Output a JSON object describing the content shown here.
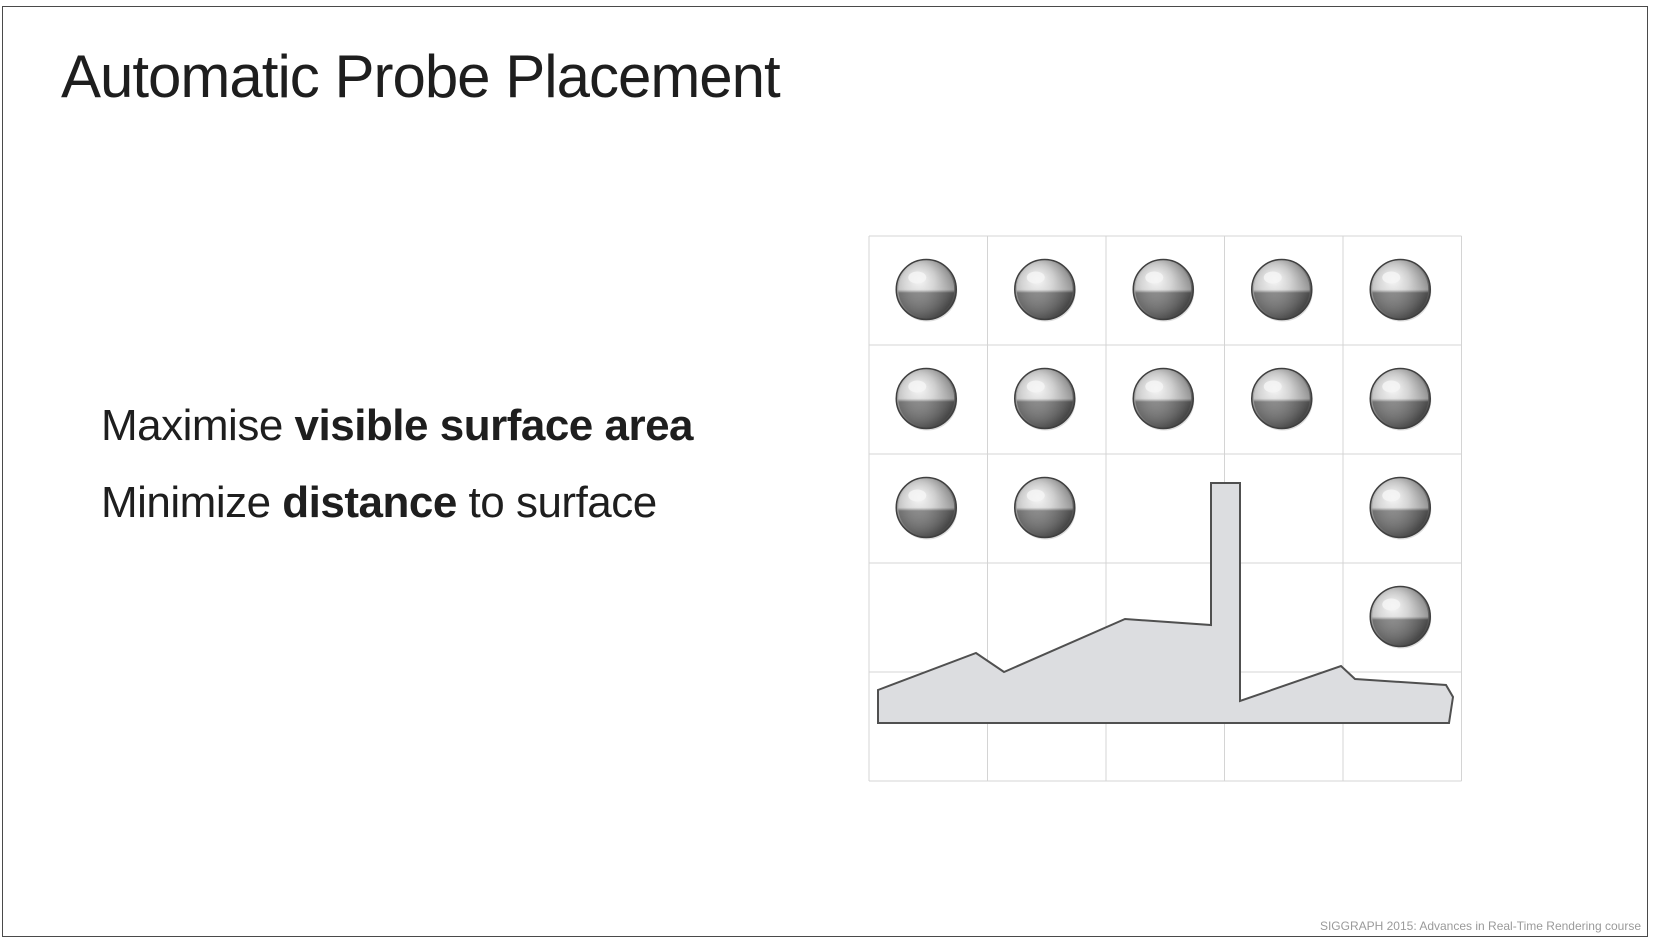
{
  "slide": {
    "title": "Automatic Probe Placement",
    "bullets": [
      {
        "normal_before": "Maximise ",
        "bold": "visible surface area",
        "normal_after": ""
      },
      {
        "normal_before": "Minimize ",
        "bold": "distance",
        "normal_after": " to surface"
      }
    ],
    "footer": "SIGGRAPH 2015: Advances in Real-Time Rendering course"
  },
  "diagram": {
    "grid_columns": 5,
    "grid_rows": 5,
    "probes": [
      [
        1,
        1,
        1,
        1,
        1
      ],
      [
        1,
        1,
        1,
        1,
        1
      ],
      [
        1,
        1,
        0,
        0,
        1
      ],
      [
        0,
        0,
        0,
        0,
        1
      ],
      [
        0,
        0,
        0,
        0,
        0
      ]
    ],
    "colors": {
      "grid_line": "#d4d4d4",
      "surface_fill": "#dcdde0",
      "surface_stroke": "#505050",
      "probe_highlight": "#f4f4f4",
      "probe_mid": "#a9a9a9",
      "probe_dark": "#3f3f3f"
    },
    "icons": {
      "probe": "reflective-sphere-icon"
    }
  }
}
